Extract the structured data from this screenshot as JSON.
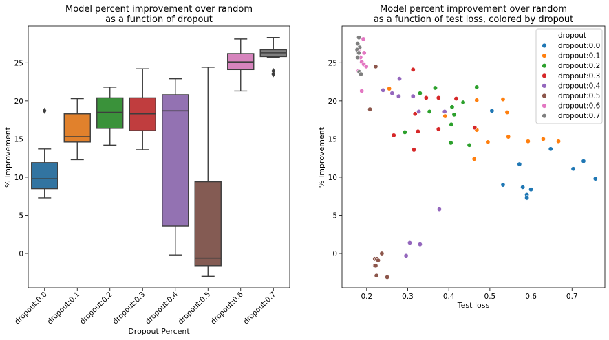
{
  "chart_data": [
    {
      "type": "box",
      "title": "Model percent improvement over random\nas a function of dropout",
      "xlabel": "Dropout Percent",
      "ylabel": "% Improvement",
      "ylim": [
        -4.5,
        29.8
      ],
      "yticks": [
        0,
        5,
        10,
        15,
        20,
        25
      ],
      "grid": false,
      "categories": [
        "dropout:0.0",
        "dropout:0.1",
        "dropout:0.2",
        "dropout:0.3",
        "dropout:0.4",
        "dropout:0.5",
        "dropout:0.6",
        "dropout:0.7"
      ],
      "colors": [
        "#3274a1",
        "#e1812c",
        "#3a923a",
        "#c03d3e",
        "#9372b2",
        "#845b53",
        "#d684bd",
        "#7f7f7f"
      ],
      "boxes": [
        {
          "whisker_low": 7.3,
          "q1": 8.5,
          "median": 9.8,
          "q3": 11.9,
          "whisker_high": 13.7,
          "outliers": [
            18.7
          ]
        },
        {
          "whisker_low": 12.3,
          "q1": 14.6,
          "median": 15.3,
          "q3": 18.3,
          "whisker_high": 20.3,
          "outliers": []
        },
        {
          "whisker_low": 14.2,
          "q1": 16.4,
          "median": 18.5,
          "q3": 20.4,
          "whisker_high": 21.8,
          "outliers": []
        },
        {
          "whisker_low": 13.6,
          "q1": 16.1,
          "median": 18.3,
          "q3": 20.4,
          "whisker_high": 24.2,
          "outliers": []
        },
        {
          "whisker_low": -0.2,
          "q1": 3.6,
          "median": 18.7,
          "q3": 20.8,
          "whisker_high": 22.9,
          "outliers": []
        },
        {
          "whisker_low": -3.0,
          "q1": -1.6,
          "median": -0.6,
          "q3": 9.4,
          "whisker_high": 24.4,
          "outliers": []
        },
        {
          "whisker_low": 21.3,
          "q1": 24.1,
          "median": 25.1,
          "q3": 26.2,
          "whisker_high": 28.1,
          "outliers": []
        },
        {
          "whisker_low": 25.7,
          "q1": 25.8,
          "median": 26.3,
          "q3": 26.7,
          "whisker_high": 28.3,
          "outliers": [
            23.5,
            23.9
          ]
        }
      ]
    },
    {
      "type": "scatter",
      "title": "Model percent improvement over random\nas a function of test loss, colored by dropout",
      "xlabel": "Test loss",
      "ylabel": "% Improvement",
      "xlim": [
        0.14,
        0.78
      ],
      "ylim": [
        -4.5,
        29.8
      ],
      "xticks": [
        0.2,
        0.3,
        0.4,
        0.5,
        0.6,
        0.7
      ],
      "yticks": [
        0,
        5,
        10,
        15,
        20,
        25
      ],
      "grid": false,
      "legend": {
        "title": "dropout",
        "placement": "top-right"
      },
      "series": [
        {
          "name": "dropout:0.0",
          "color": "#1f77b4",
          "points": [
            [
              0.505,
              18.7
            ],
            [
              0.648,
              13.7
            ],
            [
              0.572,
              11.7
            ],
            [
              0.703,
              11.1
            ],
            [
              0.728,
              12.1
            ],
            [
              0.757,
              9.8
            ],
            [
              0.532,
              9.0
            ],
            [
              0.58,
              8.7
            ],
            [
              0.59,
              7.7
            ],
            [
              0.6,
              8.4
            ],
            [
              0.59,
              7.3
            ]
          ]
        },
        {
          "name": "dropout:0.1",
          "color": "#ff7f0e",
          "points": [
            [
              0.255,
              21.6
            ],
            [
              0.468,
              20.1
            ],
            [
              0.532,
              20.2
            ],
            [
              0.542,
              18.5
            ],
            [
              0.391,
              18.0
            ],
            [
              0.468,
              16.2
            ],
            [
              0.593,
              14.7
            ],
            [
              0.63,
              15.0
            ],
            [
              0.667,
              14.7
            ],
            [
              0.545,
              15.3
            ],
            [
              0.495,
              14.6
            ],
            [
              0.462,
              12.4
            ]
          ]
        },
        {
          "name": "dropout:0.2",
          "color": "#2ca02c",
          "points": [
            [
              0.367,
              21.7
            ],
            [
              0.468,
              21.8
            ],
            [
              0.33,
              21.0
            ],
            [
              0.435,
              19.8
            ],
            [
              0.408,
              19.2
            ],
            [
              0.413,
              18.2
            ],
            [
              0.353,
              18.6
            ],
            [
              0.293,
              15.9
            ],
            [
              0.406,
              16.9
            ],
            [
              0.405,
              14.5
            ],
            [
              0.45,
              14.2
            ]
          ]
        },
        {
          "name": "dropout:0.3",
          "color": "#d62728",
          "points": [
            [
              0.313,
              24.1
            ],
            [
              0.345,
              20.4
            ],
            [
              0.375,
              20.4
            ],
            [
              0.418,
              20.3
            ],
            [
              0.318,
              18.3
            ],
            [
              0.375,
              16.3
            ],
            [
              0.463,
              16.5
            ],
            [
              0.325,
              16.0
            ],
            [
              0.266,
              15.5
            ],
            [
              0.315,
              13.6
            ]
          ]
        },
        {
          "name": "dropout:0.4",
          "color": "#9467bd",
          "points": [
            [
              0.28,
              22.9
            ],
            [
              0.24,
              21.4
            ],
            [
              0.262,
              21.0
            ],
            [
              0.278,
              20.6
            ],
            [
              0.313,
              20.6
            ],
            [
              0.327,
              18.6
            ],
            [
              0.39,
              18.6
            ],
            [
              0.377,
              5.8
            ],
            [
              0.305,
              1.4
            ],
            [
              0.33,
              1.2
            ],
            [
              0.296,
              -0.3
            ]
          ]
        },
        {
          "name": "dropout:0.5",
          "color": "#8c564b",
          "points": [
            [
              0.208,
              18.9
            ],
            [
              0.222,
              24.5
            ],
            [
              0.237,
              0.0
            ],
            [
              0.22,
              -0.7
            ],
            [
              0.225,
              -0.7
            ],
            [
              0.228,
              -0.9
            ],
            [
              0.22,
              -1.6
            ],
            [
              0.222,
              -1.6
            ],
            [
              0.224,
              -2.9
            ],
            [
              0.25,
              -3.1
            ]
          ]
        },
        {
          "name": "dropout:0.6",
          "color": "#e377c2",
          "points": [
            [
              0.192,
              28.1
            ],
            [
              0.18,
              26.7
            ],
            [
              0.194,
              26.3
            ],
            [
              0.185,
              25.7
            ],
            [
              0.188,
              25.1
            ],
            [
              0.193,
              24.8
            ],
            [
              0.199,
              24.5
            ],
            [
              0.18,
              23.9
            ],
            [
              0.188,
              21.3
            ]
          ]
        },
        {
          "name": "dropout:0.7",
          "color": "#7f7f7f",
          "points": [
            [
              0.181,
              28.3
            ],
            [
              0.178,
              27.5
            ],
            [
              0.183,
              27.0
            ],
            [
              0.177,
              26.7
            ],
            [
              0.181,
              26.3
            ],
            [
              0.178,
              25.7
            ],
            [
              0.182,
              23.8
            ],
            [
              0.186,
              23.5
            ]
          ]
        }
      ]
    }
  ]
}
